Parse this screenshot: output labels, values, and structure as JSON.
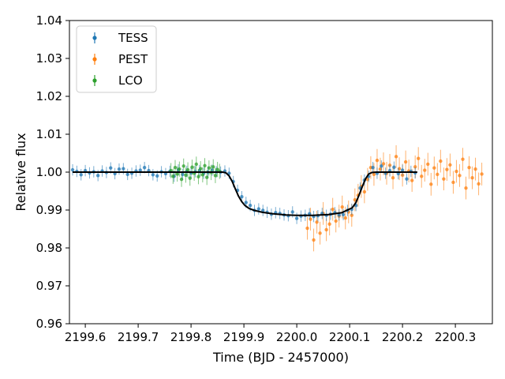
{
  "chart_data": {
    "type": "scatter",
    "xlabel": "Time (BJD - 2457000)",
    "ylabel": "Relative flux",
    "xlim": [
      2199.57,
      2200.37
    ],
    "ylim": [
      0.96,
      1.04
    ],
    "x_ticks": [
      2199.6,
      2199.7,
      2199.8,
      2199.9,
      2200.0,
      2200.1,
      2200.2,
      2200.3
    ],
    "x_tick_labels": [
      "2199.6",
      "2199.7",
      "2199.8",
      "2199.9",
      "2200.0",
      "2200.1",
      "2200.2",
      "2200.3"
    ],
    "y_ticks": [
      0.96,
      0.97,
      0.98,
      0.99,
      1.0,
      1.01,
      1.02,
      1.03,
      1.04
    ],
    "y_tick_labels": [
      "0.96",
      "0.97",
      "0.98",
      "0.99",
      "1.00",
      "1.01",
      "1.02",
      "1.03",
      "1.04"
    ],
    "grid": false,
    "legend": "top-left",
    "series": [
      {
        "name": "TESS",
        "color": "#1f77b4",
        "x": [
          2199.576,
          2199.584,
          2199.592,
          2199.6,
          2199.608,
          2199.616,
          2199.624,
          2199.632,
          2199.64,
          2199.648,
          2199.656,
          2199.664,
          2199.672,
          2199.68,
          2199.688,
          2199.696,
          2199.704,
          2199.712,
          2199.72,
          2199.728,
          2199.736,
          2199.744,
          2199.752,
          2199.76,
          2199.768,
          2199.776,
          2199.784,
          2199.792,
          2199.8,
          2199.808,
          2199.816,
          2199.824,
          2199.832,
          2199.84,
          2199.848,
          2199.856,
          2199.864,
          2199.872,
          2199.88,
          2199.888,
          2199.896,
          2199.904,
          2199.912,
          2199.92,
          2199.928,
          2199.936,
          2199.944,
          2199.952,
          2199.96,
          2199.968,
          2199.976,
          2199.984,
          2199.992,
          2200.0,
          2200.008,
          2200.016,
          2200.024,
          2200.032,
          2200.04,
          2200.048,
          2200.056,
          2200.064,
          2200.072,
          2200.08,
          2200.088,
          2200.096,
          2200.104,
          2200.112,
          2200.12,
          2200.128,
          2200.136,
          2200.144,
          2200.152,
          2200.16,
          2200.168,
          2200.176,
          2200.184,
          2200.192,
          2200.2,
          2200.208,
          2200.216,
          2200.224
        ],
        "y": [
          1.0006,
          1.0002,
          0.9993,
          1.0004,
          0.9998,
          1.0001,
          0.9991,
          1.0003,
          0.9999,
          1.0011,
          0.9996,
          1.0008,
          1.0009,
          0.9994,
          0.9997,
          1.0003,
          1.0005,
          1.0012,
          1.0004,
          0.9993,
          0.999,
          1.0001,
          0.9996,
          1.0002,
          0.9989,
          1.0006,
          0.9994,
          1.0002,
          0.9998,
          1.0001,
          1.0004,
          0.9997,
          1.0,
          1.0005,
          1.0001,
          1.0,
          1.0003,
          0.9997,
          0.9975,
          0.9952,
          0.9935,
          0.992,
          0.9912,
          0.9899,
          0.9903,
          0.9899,
          0.9894,
          0.9889,
          0.9893,
          0.9891,
          0.9887,
          0.9885,
          0.9895,
          0.9878,
          0.9884,
          0.9886,
          0.989,
          0.9883,
          0.9885,
          0.9891,
          0.9886,
          0.9889,
          0.9893,
          0.9887,
          0.9888,
          0.9899,
          0.9902,
          0.9912,
          0.9958,
          0.9979,
          0.9989,
          1.0012,
          0.9997,
          1.0016,
          0.9997,
          1.0004,
          1.0013,
          0.9996,
          1.0005,
          0.9982,
          1.0002,
          0.9998
        ],
        "error": [
          0.0015,
          0.0015,
          0.0015,
          0.0015,
          0.0015,
          0.0015,
          0.0015,
          0.0015,
          0.0015,
          0.0015,
          0.0015,
          0.0015,
          0.0015,
          0.0015,
          0.0015,
          0.0015,
          0.0015,
          0.0015,
          0.0015,
          0.0015,
          0.0015,
          0.0015,
          0.0015,
          0.0015,
          0.0015,
          0.0015,
          0.0015,
          0.0015,
          0.0015,
          0.0015,
          0.0015,
          0.0015,
          0.0015,
          0.0015,
          0.0015,
          0.0015,
          0.0015,
          0.0015,
          0.0015,
          0.0015,
          0.0015,
          0.0015,
          0.0015,
          0.0015,
          0.0015,
          0.0015,
          0.0015,
          0.0015,
          0.0015,
          0.0015,
          0.0015,
          0.0015,
          0.0015,
          0.0015,
          0.0015,
          0.0015,
          0.0015,
          0.0015,
          0.0015,
          0.0015,
          0.0015,
          0.0015,
          0.0015,
          0.0015,
          0.0015,
          0.0015,
          0.0015,
          0.0015,
          0.0015,
          0.0015,
          0.0015,
          0.0015,
          0.0015,
          0.0015,
          0.0015,
          0.0015,
          0.0015,
          0.0015,
          0.0015,
          0.0015,
          0.0015,
          0.0015
        ]
      },
      {
        "name": "PEST",
        "color": "#ff7f0e",
        "x": [
          2200.02,
          2200.026,
          2200.032,
          2200.038,
          2200.044,
          2200.05,
          2200.056,
          2200.062,
          2200.068,
          2200.074,
          2200.08,
          2200.086,
          2200.092,
          2200.098,
          2200.104,
          2200.11,
          2200.116,
          2200.122,
          2200.128,
          2200.134,
          2200.14,
          2200.146,
          2200.152,
          2200.158,
          2200.164,
          2200.17,
          2200.176,
          2200.182,
          2200.188,
          2200.194,
          2200.2,
          2200.206,
          2200.212,
          2200.218,
          2200.224,
          2200.23,
          2200.236,
          2200.242,
          2200.248,
          2200.254,
          2200.26,
          2200.266,
          2200.272,
          2200.278,
          2200.284,
          2200.29,
          2200.296,
          2200.302,
          2200.308,
          2200.314,
          2200.32,
          2200.326,
          2200.332,
          2200.338,
          2200.344,
          2200.35
        ],
        "y": [
          0.9852,
          0.9876,
          0.9821,
          0.9868,
          0.9839,
          0.9891,
          0.9848,
          0.9863,
          0.9902,
          0.9871,
          0.9884,
          0.9908,
          0.9879,
          0.9895,
          0.9886,
          0.9927,
          0.9939,
          0.9962,
          0.9948,
          0.9981,
          1.0012,
          0.9994,
          1.0031,
          1.0008,
          1.0022,
          0.9997,
          1.0018,
          0.9985,
          1.0041,
          1.0009,
          0.9992,
          1.0027,
          1.0003,
          0.9978,
          1.0014,
          1.0036,
          0.9989,
          1.0005,
          1.0021,
          0.9968,
          1.0011,
          0.9994,
          1.0029,
          0.9982,
          1.0007,
          1.0019,
          0.9973,
          1.0002,
          0.9991,
          1.0034,
          0.9958,
          1.0012,
          0.9985,
          1.0008,
          0.9969,
          0.9995
        ],
        "error": [
          0.003,
          0.003,
          0.003,
          0.003,
          0.003,
          0.003,
          0.003,
          0.003,
          0.003,
          0.003,
          0.003,
          0.003,
          0.003,
          0.003,
          0.003,
          0.003,
          0.003,
          0.003,
          0.003,
          0.003,
          0.003,
          0.003,
          0.003,
          0.003,
          0.003,
          0.003,
          0.003,
          0.003,
          0.003,
          0.003,
          0.003,
          0.003,
          0.003,
          0.003,
          0.003,
          0.003,
          0.003,
          0.003,
          0.003,
          0.003,
          0.003,
          0.003,
          0.003,
          0.003,
          0.003,
          0.003,
          0.003,
          0.003,
          0.003,
          0.003,
          0.003,
          0.003,
          0.003,
          0.003,
          0.003,
          0.003
        ]
      },
      {
        "name": "LCO",
        "color": "#2ca02c",
        "x": [
          2199.762,
          2199.766,
          2199.77,
          2199.774,
          2199.778,
          2199.782,
          2199.786,
          2199.79,
          2199.794,
          2199.798,
          2199.802,
          2199.806,
          2199.81,
          2199.814,
          2199.818,
          2199.822,
          2199.826,
          2199.83,
          2199.834,
          2199.838,
          2199.842,
          2199.846,
          2199.85,
          2199.854
        ],
        "y": [
          1.0004,
          0.9989,
          1.0012,
          0.9995,
          1.0008,
          0.9981,
          1.0016,
          0.9992,
          1.0006,
          0.9984,
          1.0013,
          0.9997,
          1.0021,
          0.9988,
          1.0009,
          0.9993,
          1.0017,
          0.9986,
          1.0011,
          0.9999,
          1.0014,
          0.9991,
          1.0007,
          1.0002
        ],
        "error": [
          0.002,
          0.002,
          0.002,
          0.002,
          0.002,
          0.002,
          0.002,
          0.002,
          0.002,
          0.002,
          0.002,
          0.002,
          0.002,
          0.002,
          0.002,
          0.002,
          0.002,
          0.002,
          0.002,
          0.002,
          0.002,
          0.002,
          0.002,
          0.002
        ]
      }
    ],
    "model": {
      "color": "#000000",
      "x": [
        2199.576,
        2199.86,
        2199.866,
        2199.872,
        2199.878,
        2199.884,
        2199.89,
        2199.896,
        2199.902,
        2199.91,
        2199.92,
        2199.935,
        2199.955,
        2199.98,
        2200.0,
        2200.03,
        2200.06,
        2200.085,
        2200.105,
        2200.112,
        2200.118,
        2200.124,
        2200.13,
        2200.136,
        2200.142,
        2200.15,
        2200.228
      ],
      "y": [
        1.0,
        1.0,
        0.9998,
        0.999,
        0.9975,
        0.9955,
        0.9936,
        0.9922,
        0.9912,
        0.9904,
        0.9899,
        0.9894,
        0.989,
        0.9887,
        0.9886,
        0.9886,
        0.9888,
        0.9893,
        0.9906,
        0.992,
        0.994,
        0.9962,
        0.9982,
        0.9995,
        0.9999,
        1.0,
        1.0
      ]
    }
  }
}
